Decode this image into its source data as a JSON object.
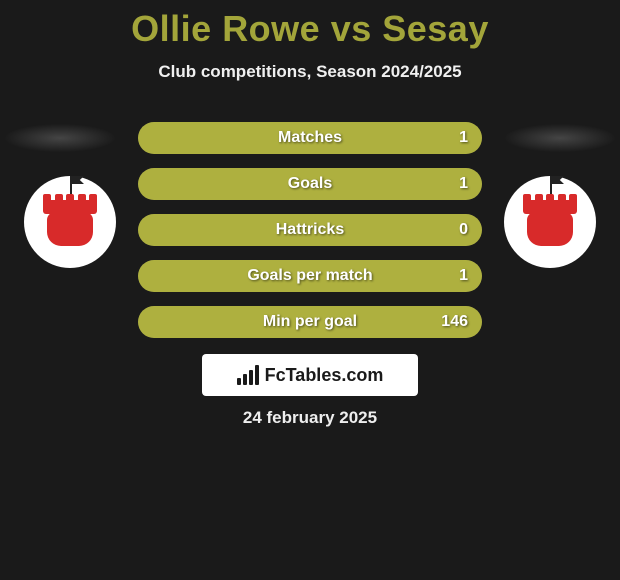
{
  "title_color": "#a3a53a",
  "title": "Ollie Rowe vs Sesay",
  "subtitle": "Club competitions, Season 2024/2025",
  "date": "24 february 2025",
  "brand": "FcTables.com",
  "bar_empty_color": "#3b3b3b",
  "bar_fill_color": "#aeb03f",
  "stats": [
    {
      "label": "Matches",
      "value": "1",
      "fill_pct": 100
    },
    {
      "label": "Goals",
      "value": "1",
      "fill_pct": 100
    },
    {
      "label": "Hattricks",
      "value": "0",
      "fill_pct": 100
    },
    {
      "label": "Goals per match",
      "value": "1",
      "fill_pct": 100
    },
    {
      "label": "Min per goal",
      "value": "146",
      "fill_pct": 100
    }
  ],
  "badge_colors": {
    "bg": "#ffffff",
    "tower": "#d82a2a",
    "flag": "#222222"
  }
}
